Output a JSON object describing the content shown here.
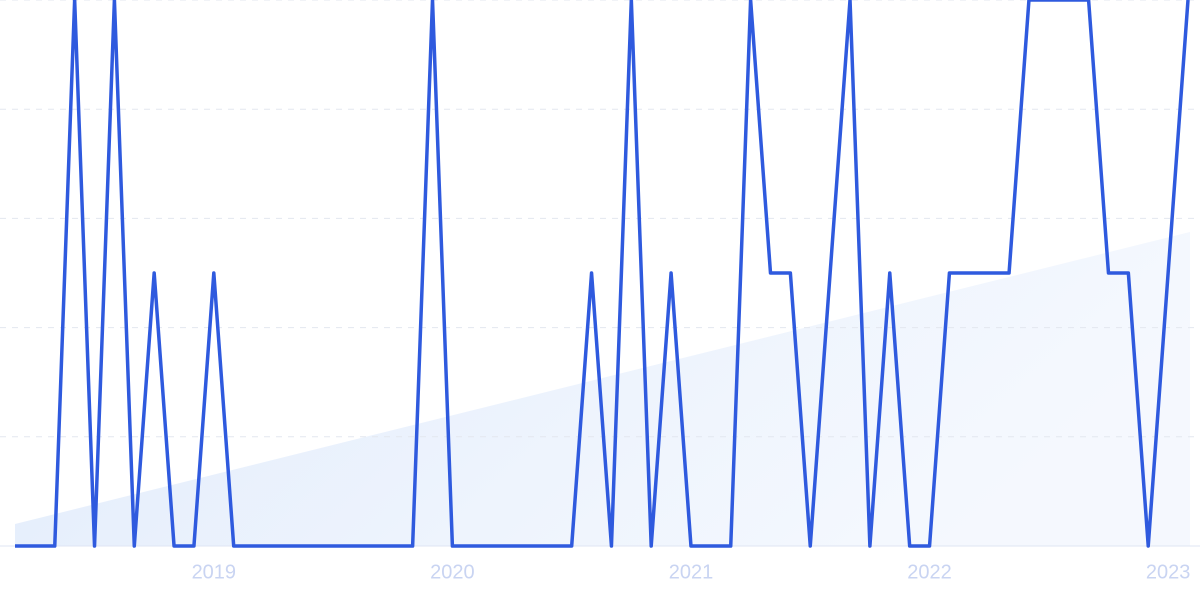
{
  "chart_data": {
    "type": "line",
    "categories": [
      null,
      null,
      null,
      null,
      null,
      null,
      null,
      null,
      null,
      null,
      "2019",
      null,
      null,
      null,
      null,
      null,
      null,
      null,
      null,
      null,
      null,
      null,
      "2020",
      null,
      null,
      null,
      null,
      null,
      null,
      null,
      null,
      null,
      null,
      null,
      "2021",
      null,
      null,
      null,
      null,
      null,
      null,
      null,
      null,
      null,
      null,
      null,
      "2022",
      null,
      null,
      null,
      null,
      null,
      null,
      null,
      null,
      null,
      null,
      null,
      "2023",
      null
    ],
    "series": [
      {
        "color": "#2f5ade",
        "values": [
          0,
          0,
          0,
          100,
          0,
          100,
          0,
          50,
          0,
          0,
          50,
          0,
          0,
          0,
          0,
          0,
          0,
          0,
          0,
          0,
          0,
          100,
          0,
          0,
          0,
          0,
          0,
          0,
          0,
          50,
          0,
          100,
          0,
          50,
          0,
          0,
          0,
          100,
          50,
          50,
          0,
          50,
          100,
          0,
          50,
          0,
          0,
          50,
          50,
          50,
          50,
          100,
          100,
          100,
          100,
          50,
          50,
          0,
          50,
          100
        ]
      }
    ],
    "ylim": [
      0,
      100
    ],
    "yticks": [
      0,
      20,
      40,
      60,
      80,
      100
    ],
    "grid": true
  }
}
